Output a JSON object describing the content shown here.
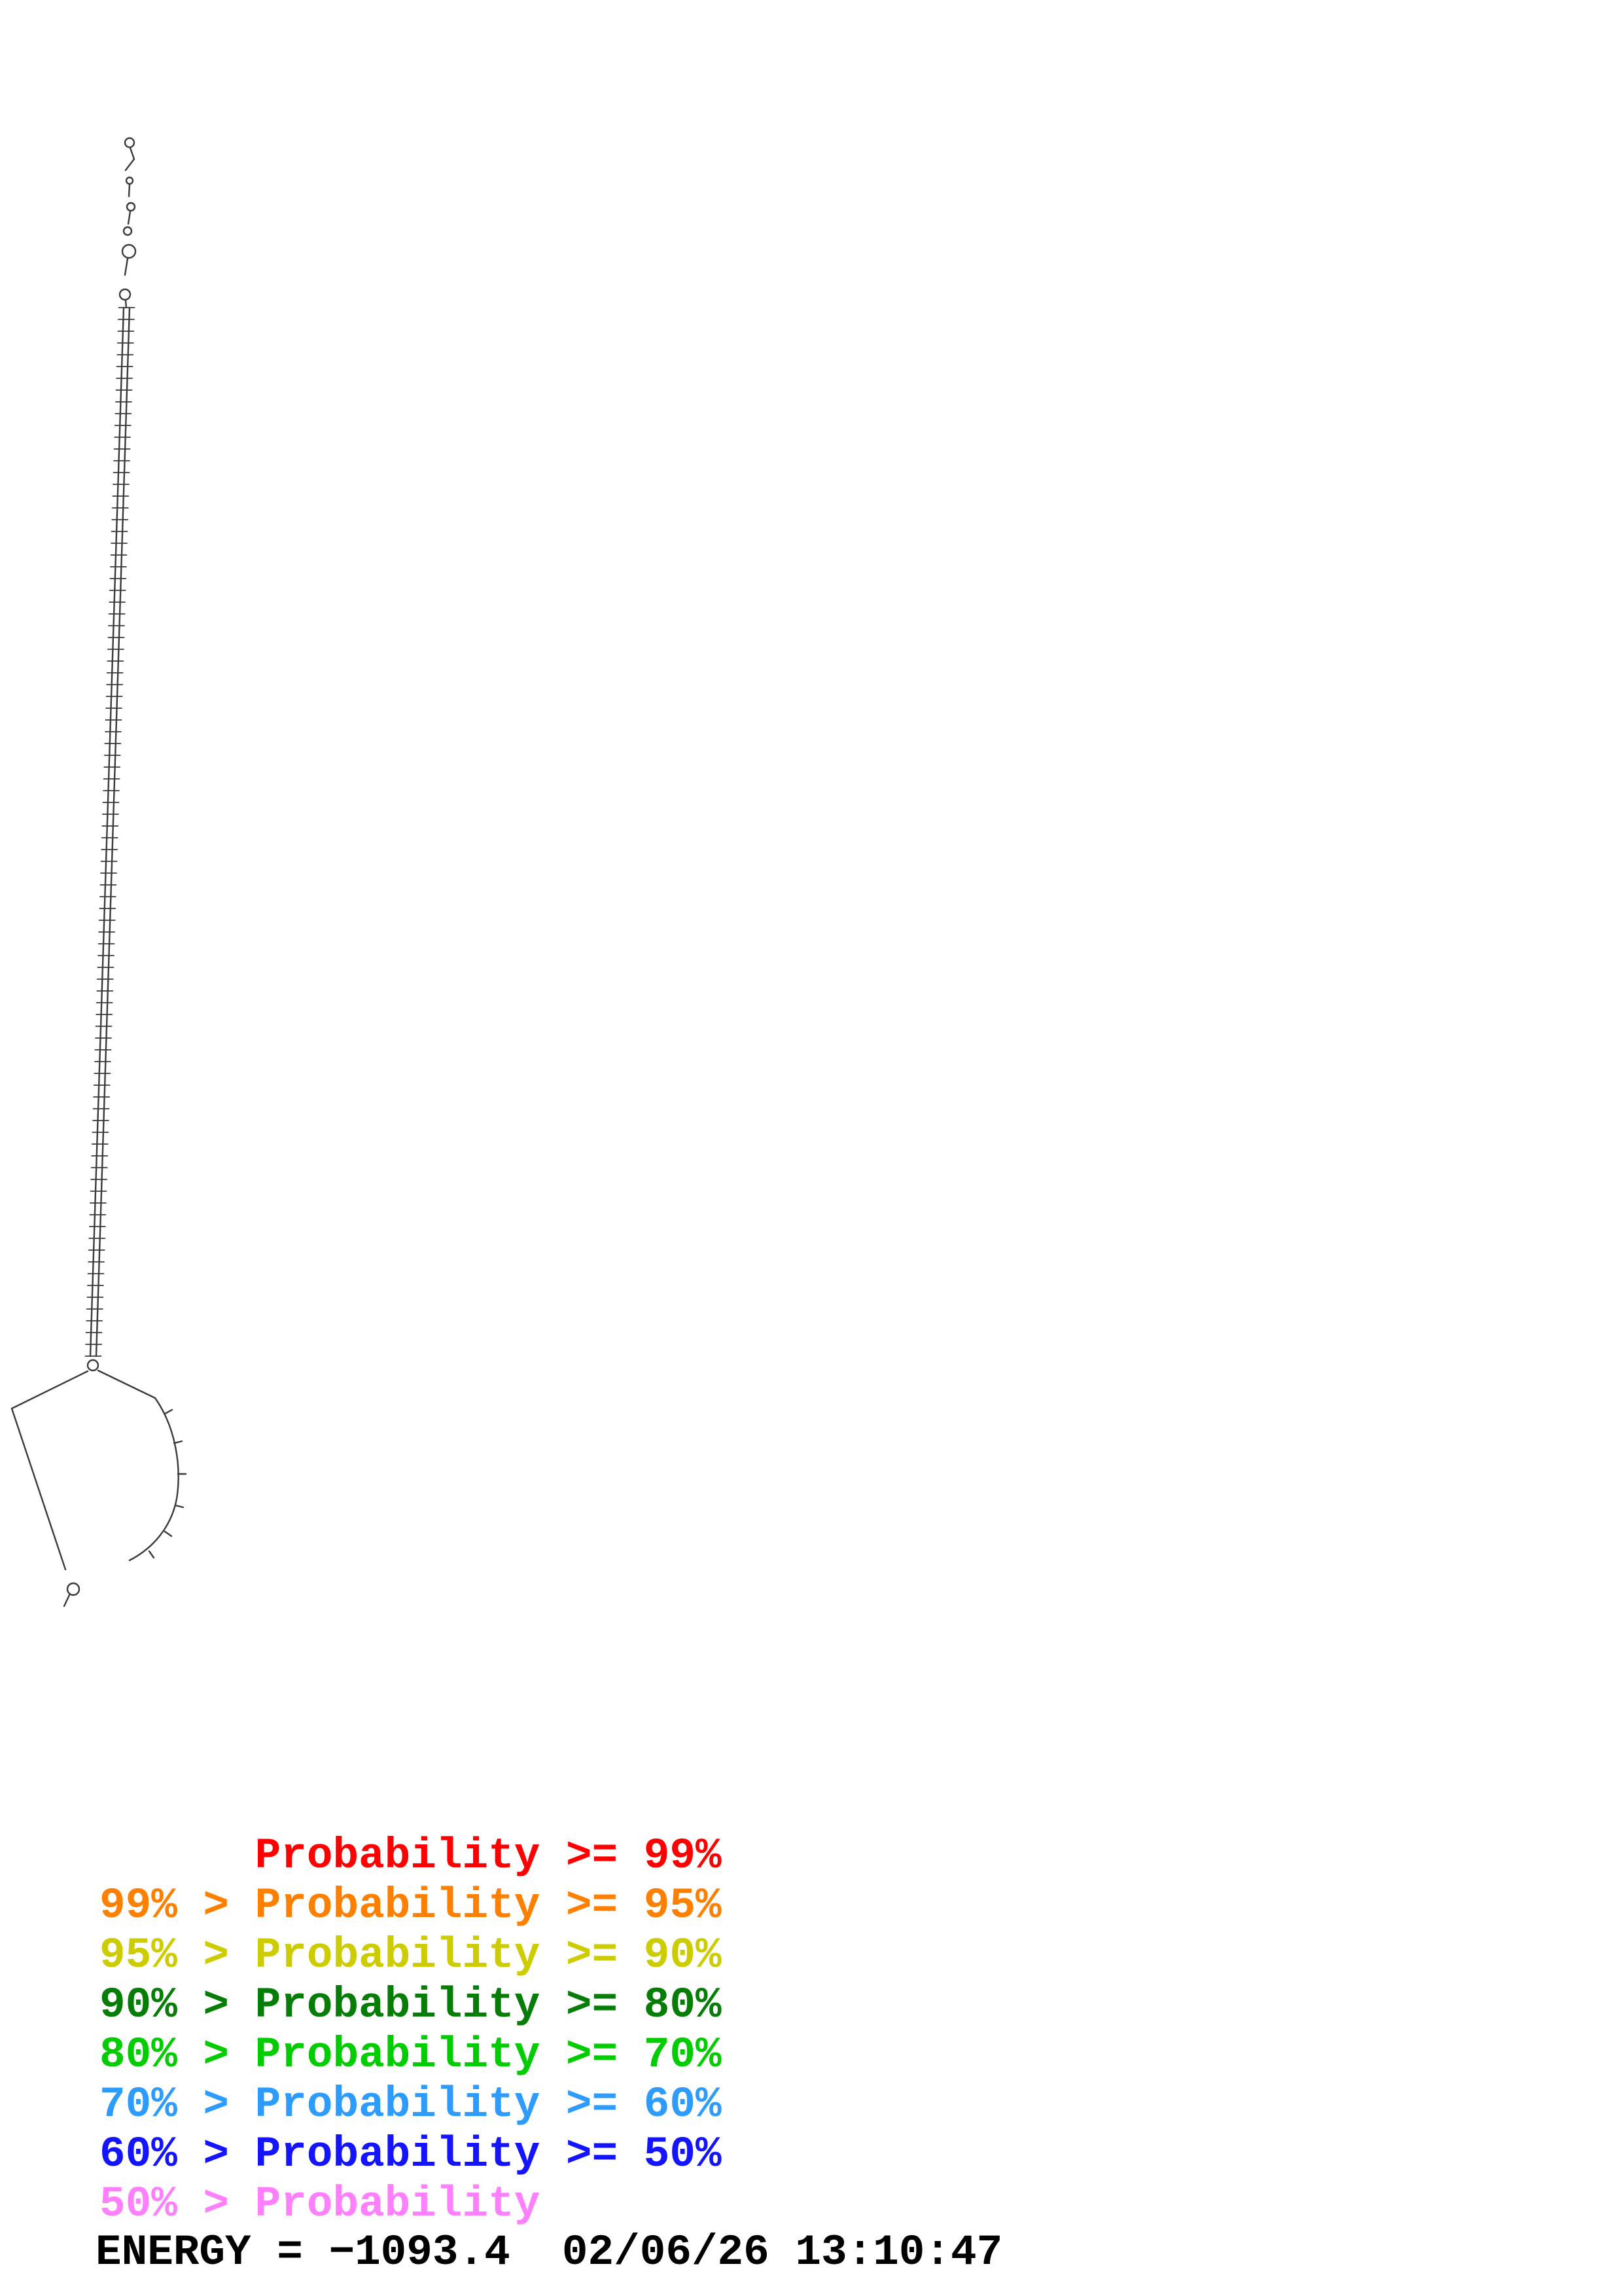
{
  "legend": {
    "items": [
      {
        "label": "      Probability >= 99%",
        "color": "#ff0000"
      },
      {
        "label": "99% > Probability >= 95%",
        "color": "#ff8000"
      },
      {
        "label": "95% > Probability >= 90%",
        "color": "#cccc00"
      },
      {
        "label": "90% > Probability >= 80%",
        "color": "#067d06"
      },
      {
        "label": "80% > Probability >= 70%",
        "color": "#00cc00"
      },
      {
        "label": "70% > Probability >= 60%",
        "color": "#2e9bff"
      },
      {
        "label": "60% > Probability >= 50%",
        "color": "#1414ff"
      },
      {
        "label": "50% > Probability",
        "color": "#ff80ff"
      }
    ]
  },
  "footer": {
    "energy_line": "ENERGY = −1093.4  02/06/26 13:10:47"
  },
  "structure": {
    "stroke_color": "#3a3a3a"
  }
}
